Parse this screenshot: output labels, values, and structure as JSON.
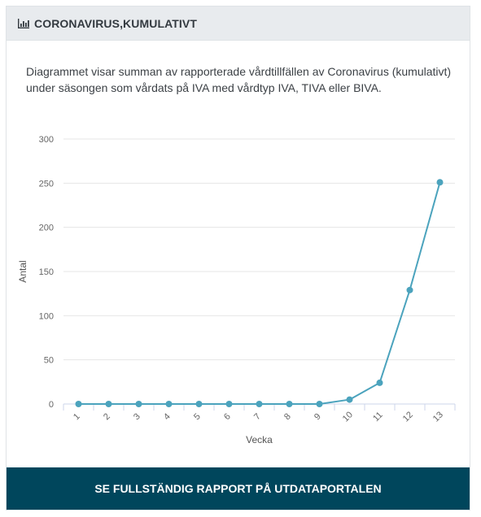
{
  "header": {
    "icon": "bar-chart-icon",
    "title": "CORONAVIRUS,KUMULATIVT"
  },
  "description": "Diagrammet visar summan av rapporterade vårdtillfällen av Coronavirus (kumulativt) under säsongen som vårdats på IVA med vårdtyp IVA, TIVA eller BIVA.",
  "footer": {
    "button_label": "SE FULLSTÄNDIG RAPPORT PÅ UTDATAPORTALEN"
  },
  "colors": {
    "series": "#4ba3bd",
    "footer_bg": "#00465c",
    "header_bg": "#e8ebee"
  },
  "chart_data": {
    "type": "line",
    "categories": [
      "1",
      "2",
      "3",
      "4",
      "5",
      "6",
      "7",
      "8",
      "9",
      "10",
      "11",
      "12",
      "13"
    ],
    "values": [
      0,
      0,
      0,
      0,
      0,
      0,
      0,
      0,
      0,
      5,
      24,
      129,
      251
    ],
    "xlabel": "Vecka",
    "ylabel": "Antal",
    "ylim": [
      0,
      300
    ],
    "yticks": [
      "0",
      "50",
      "100",
      "150",
      "200",
      "250",
      "300"
    ],
    "grid": true,
    "legend": "none"
  }
}
